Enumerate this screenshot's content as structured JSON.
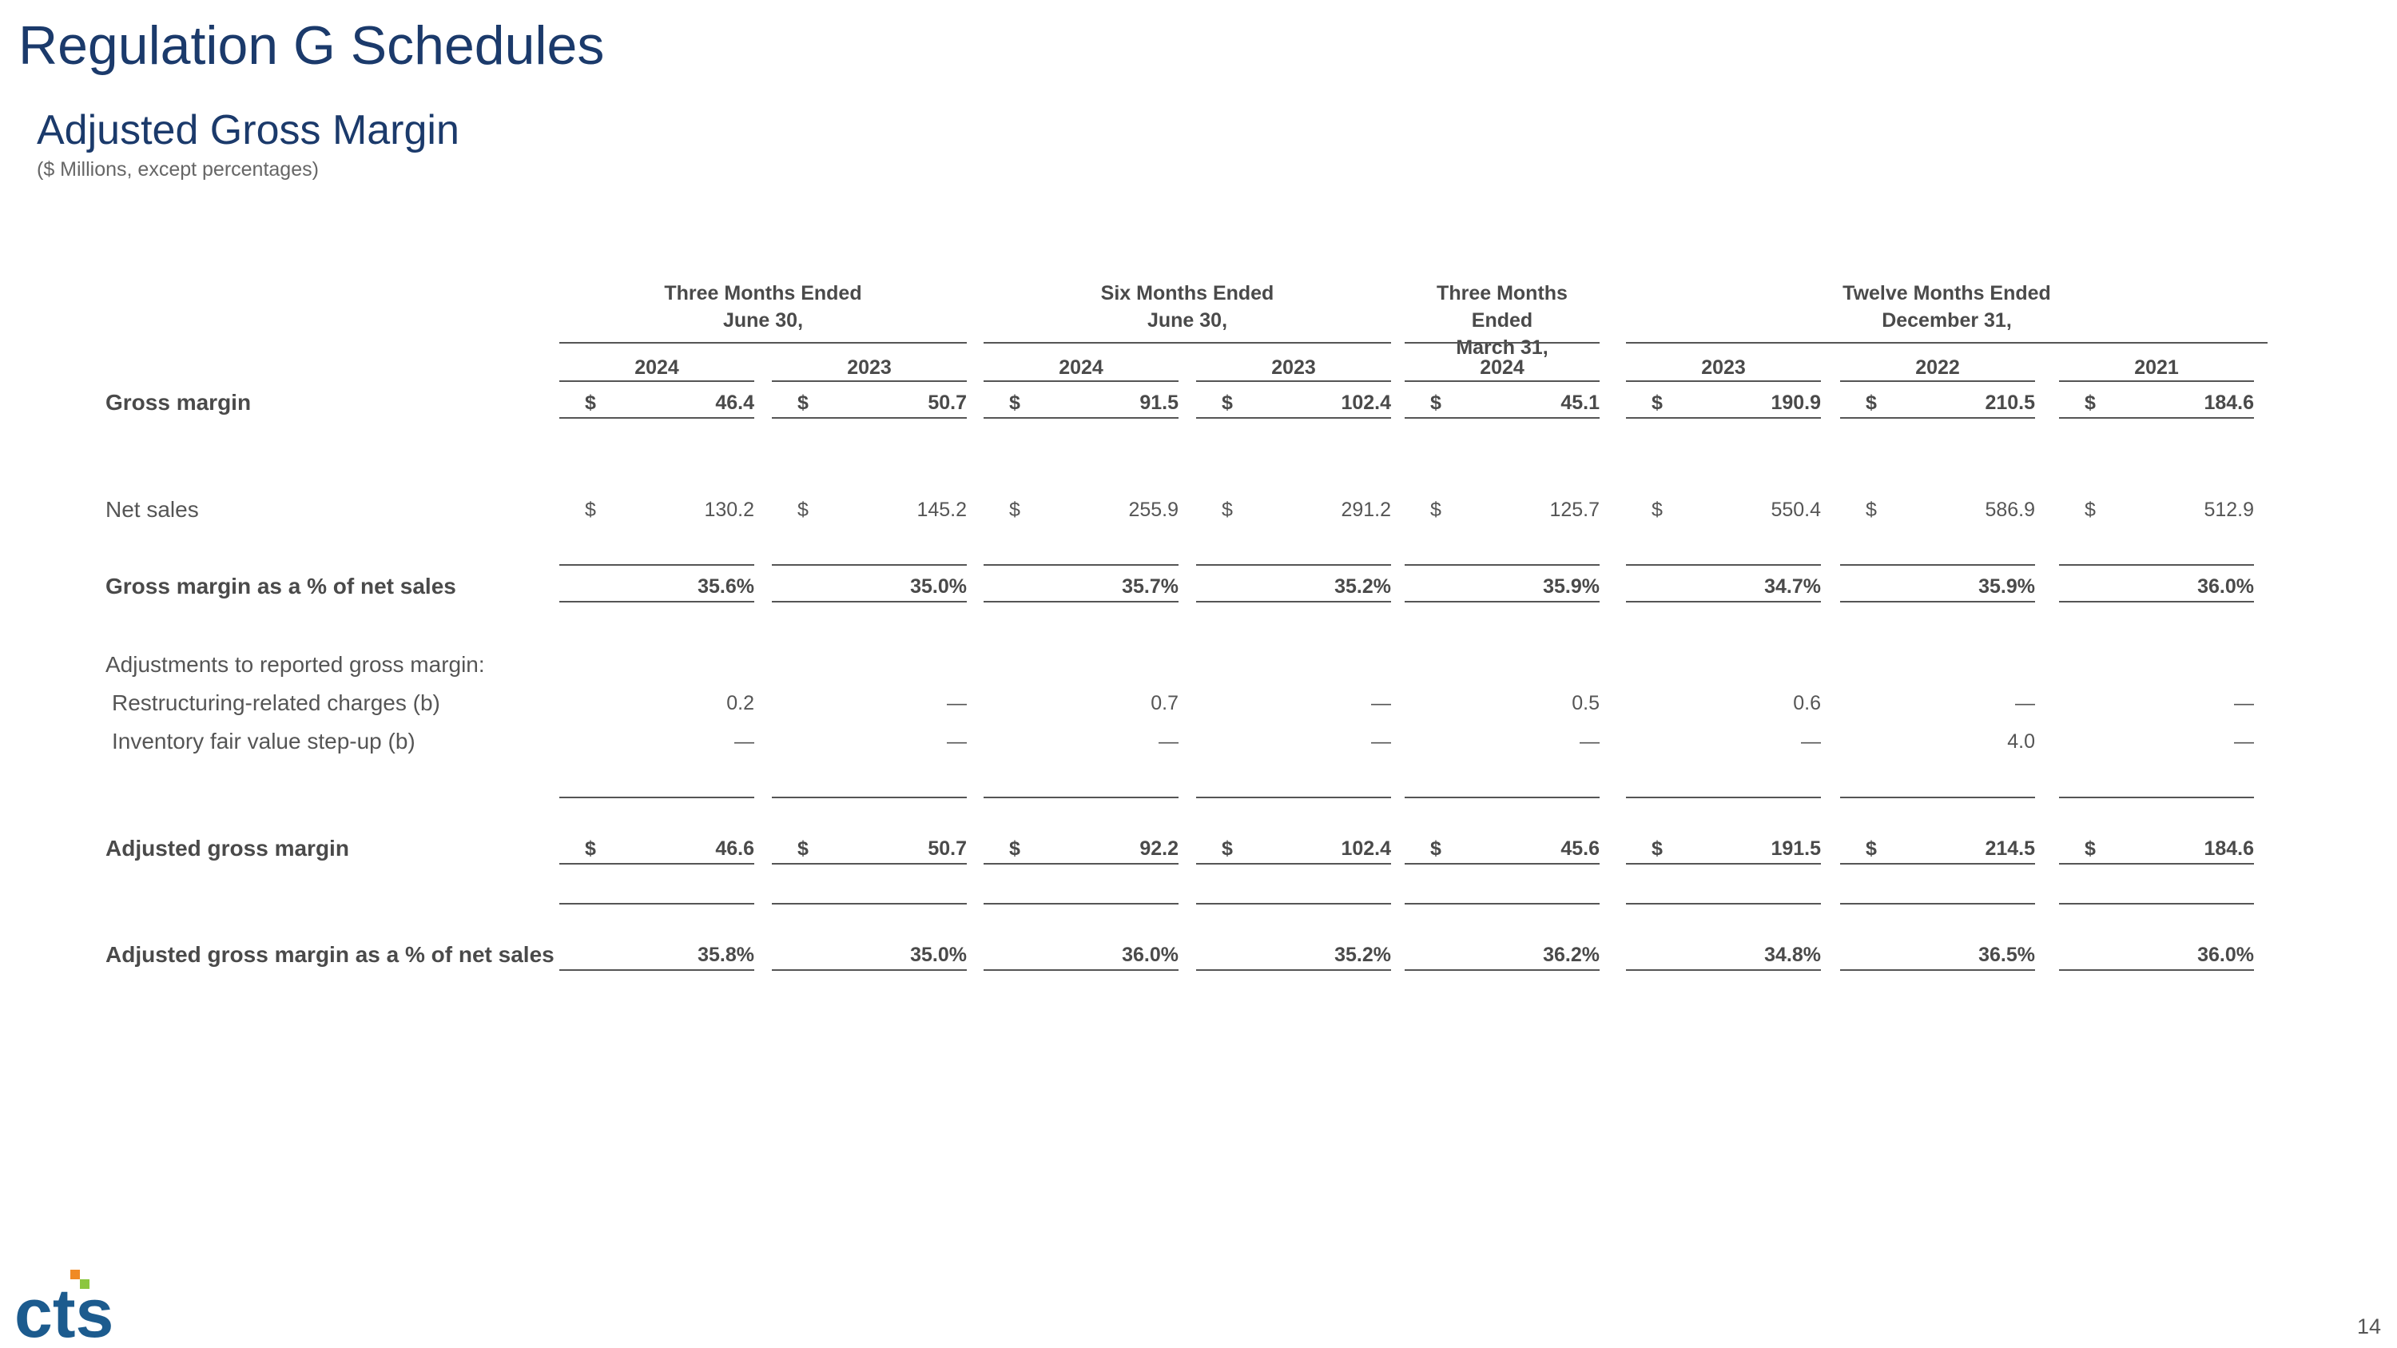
{
  "page_title": "Regulation G Schedules",
  "section_title": "Adjusted Gross Margin",
  "section_subtitle": "($ Millions, except percentages)",
  "group_headers": [
    {
      "line1": "Three Months Ended",
      "line2": "June 30,"
    },
    {
      "line1": "Six Months Ended",
      "line2": "June 30,"
    },
    {
      "line1": "Three Months Ended",
      "line2": "March 31,"
    },
    {
      "line1": "Twelve Months Ended",
      "line2": "December 31,"
    }
  ],
  "years": [
    "2024",
    "2023",
    "2024",
    "2023",
    "2024",
    "2023",
    "2022",
    "2021"
  ],
  "currency_symbol": "$",
  "rows": [
    {
      "label": "Gross margin",
      "bold": true,
      "currency": true,
      "underline": true,
      "values": [
        "46.4",
        "50.7",
        "91.5",
        "102.4",
        "45.1",
        "190.9",
        "210.5",
        "184.6"
      ]
    },
    {
      "label": "Net sales",
      "bold": false,
      "currency": true,
      "underline": false,
      "values": [
        "130.2",
        "145.2",
        "255.9",
        "291.2",
        "125.7",
        "550.4",
        "586.9",
        "512.9"
      ]
    },
    {
      "label": "Gross margin as a % of net sales",
      "bold": true,
      "currency": false,
      "underline": true,
      "values": [
        "35.6%",
        "35.0%",
        "35.7%",
        "35.2%",
        "35.9%",
        "34.7%",
        "35.9%",
        "36.0%"
      ]
    },
    {
      "label": "Adjustments to reported gross margin:",
      "bold": false,
      "currency": false,
      "underline": false,
      "values": []
    },
    {
      "label": "Restructuring-related charges (b)",
      "bold": false,
      "currency": false,
      "underline": false,
      "values": [
        "0.2",
        "—",
        "0.7",
        "—",
        "0.5",
        "0.6",
        "—",
        "—"
      ]
    },
    {
      "label": "Inventory fair value step-up (b)",
      "bold": false,
      "currency": false,
      "underline": false,
      "values": [
        "—",
        "—",
        "—",
        "—",
        "—",
        "—",
        "4.0",
        "—"
      ]
    },
    {
      "label": "Adjusted gross margin",
      "bold": true,
      "currency": true,
      "underline": true,
      "values": [
        "46.6",
        "50.7",
        "92.2",
        "102.4",
        "45.6",
        "191.5",
        "214.5",
        "184.6"
      ]
    },
    {
      "label": "Adjusted gross margin as a % of net sales",
      "bold": true,
      "currency": false,
      "underline": true,
      "values": [
        "35.8%",
        "35.0%",
        "36.0%",
        "35.2%",
        "36.2%",
        "34.8%",
        "36.5%",
        "36.0%"
      ]
    }
  ],
  "logo_text": "cts",
  "page_number": "14",
  "colors": {
    "title_blue": "#1b3a6b",
    "logo_blue": "#1c5b8e",
    "logo_orange": "#f08a24",
    "logo_green": "#8cc63f"
  }
}
